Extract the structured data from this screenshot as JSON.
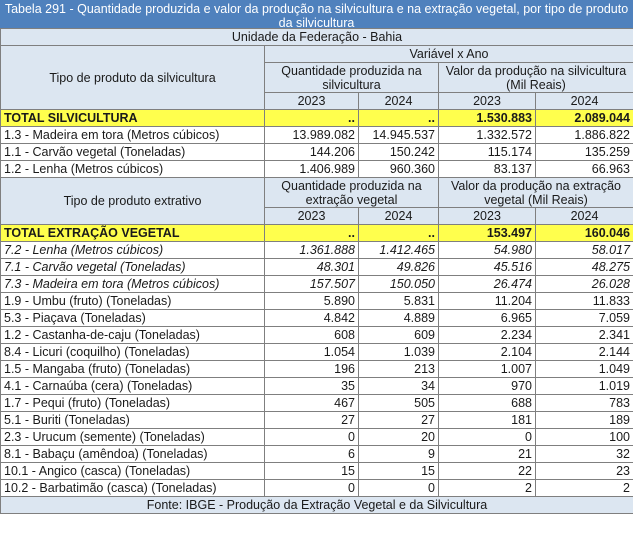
{
  "title": "Tabela 291 - Quantidade produzida e valor da produção na silvicultura e na extração vegetal, por tipo de produto da silvicultura",
  "unidade": "Unidade da Federação - Bahia",
  "variavel": "Variável x Ano",
  "sec1": {
    "tipo_label": "Tipo de produto da silvicultura",
    "qtd_label": "Quantidade produzida na silvicultura",
    "valor_label": "Valor da produção na silvicultura (Mil Reais)",
    "years": [
      "2023",
      "2024",
      "2023",
      "2024"
    ],
    "rows": [
      {
        "name": "TOTAL SILVICULTURA",
        "v": [
          "..",
          "..",
          "1.530.883",
          "2.089.044"
        ],
        "type": "total"
      },
      {
        "name": "1.3 - Madeira em tora (Metros cúbicos)",
        "v": [
          "13.989.082",
          "14.945.537",
          "1.332.572",
          "1.886.822"
        ],
        "type": "normal"
      },
      {
        "name": "1.1 - Carvão vegetal (Toneladas)",
        "v": [
          "144.206",
          "150.242",
          "115.174",
          "135.259"
        ],
        "type": "normal"
      },
      {
        "name": "1.2 - Lenha (Metros cúbicos)",
        "v": [
          "1.406.989",
          "960.360",
          "83.137",
          "66.963"
        ],
        "type": "normal"
      }
    ]
  },
  "sec2": {
    "tipo_label": "Tipo de produto extrativo",
    "qtd_label": "Quantidade produzida na extração vegetal",
    "valor_label": "Valor da produção na extração vegetal (Mil Reais)",
    "years": [
      "2023",
      "2024",
      "2023",
      "2024"
    ],
    "rows": [
      {
        "name": "TOTAL EXTRAÇÃO VEGETAL",
        "v": [
          "..",
          "..",
          "153.497",
          "160.046"
        ],
        "type": "total"
      },
      {
        "name": "7.2 - Lenha (Metros cúbicos)",
        "v": [
          "1.361.888",
          "1.412.465",
          "54.980",
          "58.017"
        ],
        "type": "italic"
      },
      {
        "name": "7.1 - Carvão vegetal (Toneladas)",
        "v": [
          "48.301",
          "49.826",
          "45.516",
          "48.275"
        ],
        "type": "italic"
      },
      {
        "name": "7.3 - Madeira em tora (Metros cúbicos)",
        "v": [
          "157.507",
          "150.050",
          "26.474",
          "26.028"
        ],
        "type": "italic"
      },
      {
        "name": "1.9 - Umbu (fruto) (Toneladas)",
        "v": [
          "5.890",
          "5.831",
          "11.204",
          "11.833"
        ],
        "type": "normal"
      },
      {
        "name": "5.3 - Piaçava (Toneladas)",
        "v": [
          "4.842",
          "4.889",
          "6.965",
          "7.059"
        ],
        "type": "normal"
      },
      {
        "name": "1.2 - Castanha-de-caju (Toneladas)",
        "v": [
          "608",
          "609",
          "2.234",
          "2.341"
        ],
        "type": "normal"
      },
      {
        "name": "8.4 - Licuri (coquilho) (Toneladas)",
        "v": [
          "1.054",
          "1.039",
          "2.104",
          "2.144"
        ],
        "type": "normal"
      },
      {
        "name": "1.5 - Mangaba (fruto) (Toneladas)",
        "v": [
          "196",
          "213",
          "1.007",
          "1.049"
        ],
        "type": "normal"
      },
      {
        "name": "4.1 - Carnaúba (cera) (Toneladas)",
        "v": [
          "35",
          "34",
          "970",
          "1.019"
        ],
        "type": "normal"
      },
      {
        "name": "1.7 - Pequi (fruto) (Toneladas)",
        "v": [
          "467",
          "505",
          "688",
          "783"
        ],
        "type": "normal"
      },
      {
        "name": "5.1 - Buriti (Toneladas)",
        "v": [
          "27",
          "27",
          "181",
          "189"
        ],
        "type": "normal"
      },
      {
        "name": "2.3 - Urucum (semente) (Toneladas)",
        "v": [
          "0",
          "20",
          "0",
          "100"
        ],
        "type": "normal"
      },
      {
        "name": "8.1 - Babaçu (amêndoa) (Toneladas)",
        "v": [
          "6",
          "9",
          "21",
          "32"
        ],
        "type": "normal"
      },
      {
        "name": "10.1 - Angico (casca) (Toneladas)",
        "v": [
          "15",
          "15",
          "22",
          "23"
        ],
        "type": "normal"
      },
      {
        "name": "10.2 - Barbatimão (casca) (Toneladas)",
        "v": [
          "0",
          "0",
          "2",
          "2"
        ],
        "type": "normal"
      }
    ]
  },
  "fonte": "Fonte: IBGE - Produção da Extração Vegetal e da Silvicultura"
}
